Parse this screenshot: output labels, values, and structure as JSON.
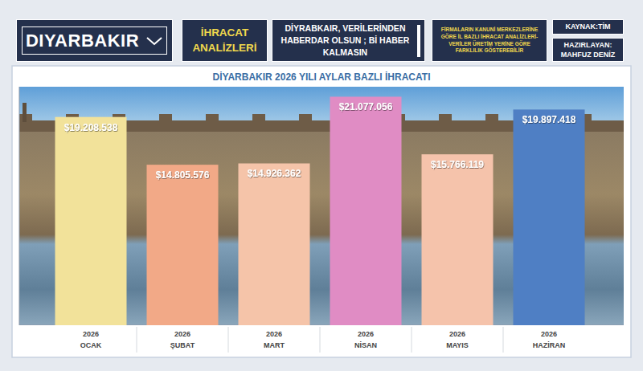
{
  "header": {
    "dropdown": "DIYARBAKIR",
    "section_title": "İHRACAT ANALİZLERİ",
    "slogan": "DİYRABKAIR, VERİLERİNDEN HABERDAR OLSUN ; Bİ HABER KALMASIN",
    "note": "FİRMALARIN KANUNİ MERKEZLERİNE GÖRE İL BAZLI İHRACAT ANALİZLERİ-VERİLER ÜRETİM YERİNE GÖRE FARKLILIK GÖSTEREBİLİR",
    "source": "KAYNAK:TİM",
    "author": "HAZIRLAYAN: MAHFUZ DENİZ"
  },
  "chart_data": {
    "type": "bar",
    "title": "DİYARBAKIR 2026 YILI AYLAR BAZLI İHRACATI",
    "categories": [
      "2026 OCAK",
      "2026 ŞUBAT",
      "2026 MART",
      "2026 NİSAN",
      "2026 MAYIS",
      "2026 HAZİRAN"
    ],
    "values": [
      19208538,
      14805576,
      14926362,
      21077056,
      15766119,
      19897418
    ],
    "value_labels": [
      "$19.208.538",
      "$14.805.576",
      "$14.926.362",
      "$21.077.056",
      "$15.766.119",
      "$19.897.418"
    ],
    "colors": [
      "#f2e29a",
      "#f2a987",
      "#f5c4a9",
      "#e08cc4",
      "#f5c3ab",
      "#4f7fc4"
    ],
    "ylim": [
      0,
      22000000
    ],
    "yticks": [],
    "tick_labels": "x",
    "data_labels": true,
    "grid": false
  }
}
